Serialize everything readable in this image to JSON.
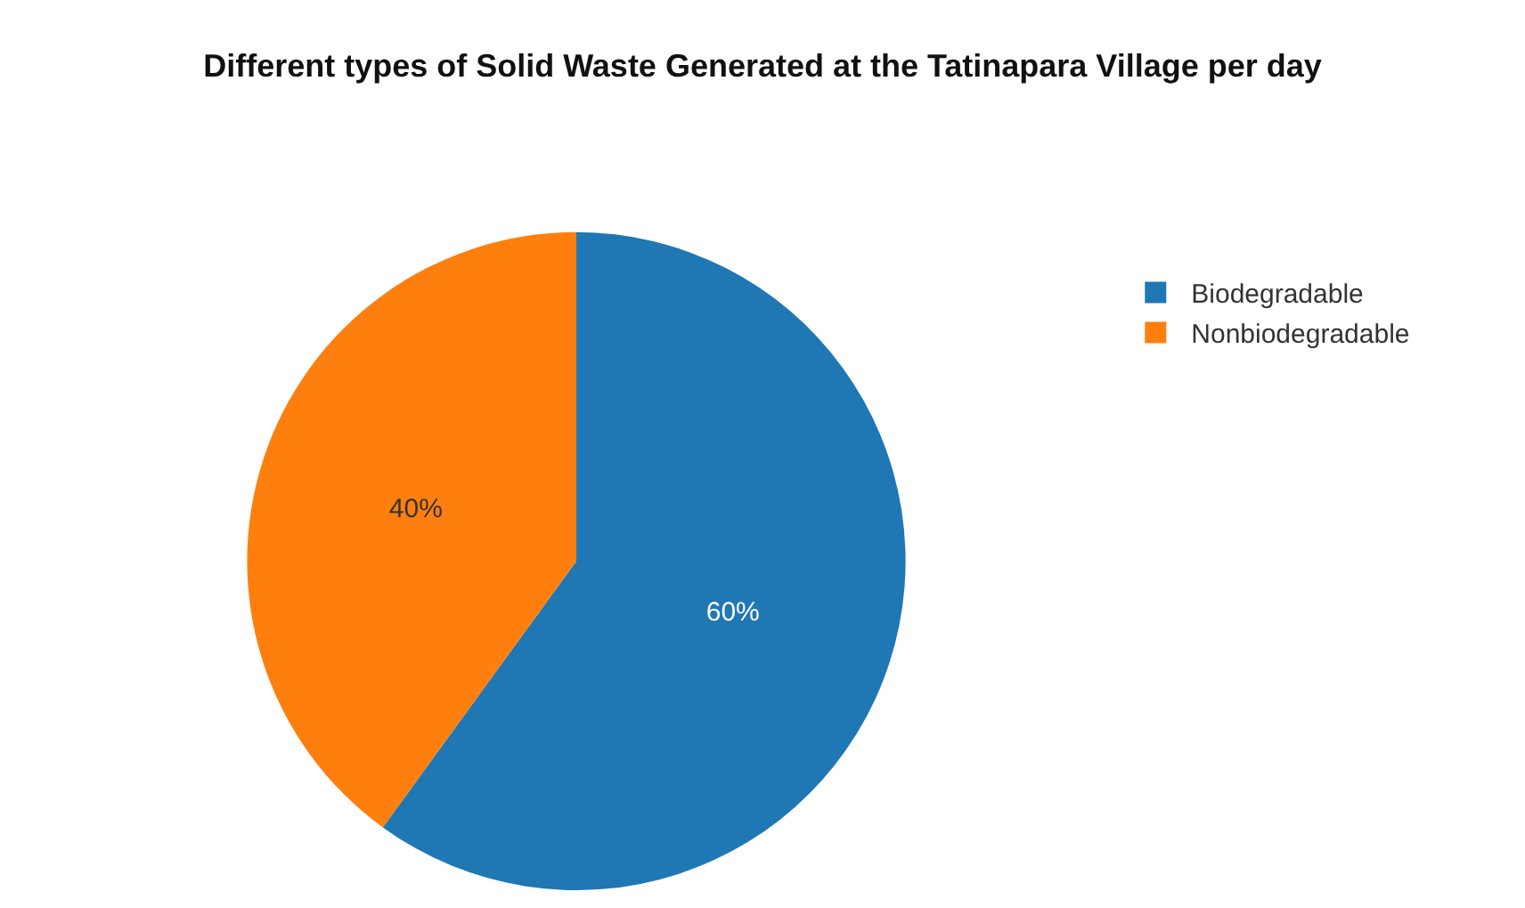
{
  "chart_data": {
    "type": "pie",
    "title": "Different types of Solid Waste Generated at the Tatinapara Village per day",
    "categories": [
      "Biodegradable",
      "Nonbiodegradable"
    ],
    "values": [
      60,
      40
    ],
    "colors": [
      "#1f77b4",
      "#ff7f0e"
    ],
    "value_labels": [
      "60%",
      "40%"
    ],
    "legend": "top right"
  }
}
